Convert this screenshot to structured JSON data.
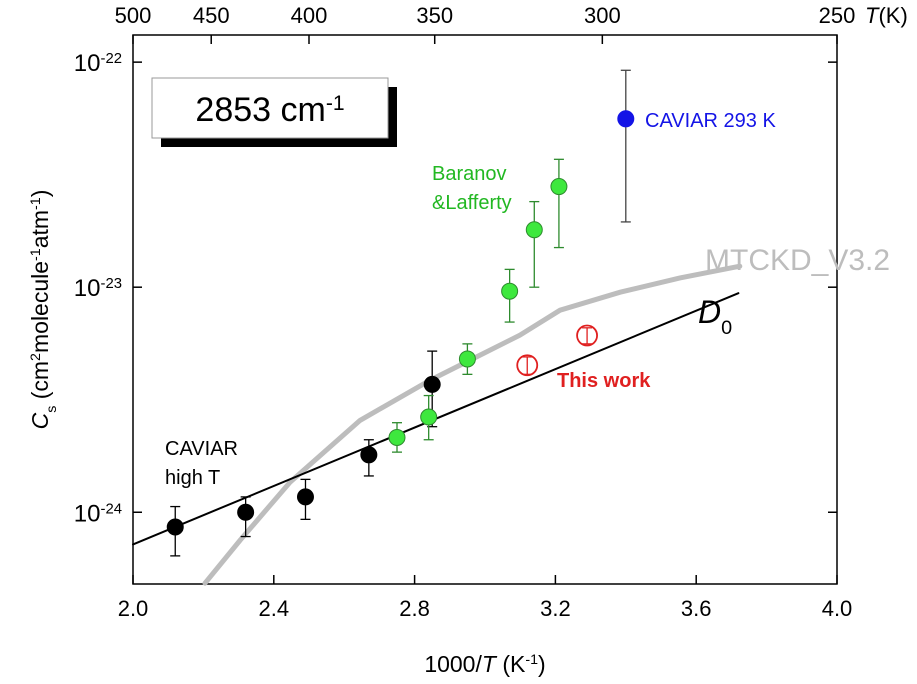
{
  "chart_data": {
    "type": "scatter",
    "box_label": [
      "2853 cm",
      "-1"
    ],
    "xlabel": [
      "1000/",
      "T",
      " (K",
      "-1",
      ")"
    ],
    "ylabel": [
      "C",
      "s",
      " (cm",
      "2",
      "molecule",
      "-1",
      "atm",
      "-1",
      ")"
    ],
    "top_label": [
      "T",
      "(K)"
    ],
    "xlim": [
      2.0,
      4.0
    ],
    "xticks": [
      {
        "value": 2.0,
        "label": "2.0"
      },
      2.4,
      2.8,
      3.2,
      3.6,
      {
        "value": 4.0,
        "label": "4.0"
      }
    ],
    "top_xticks": [
      500,
      450,
      400,
      350,
      300,
      250
    ],
    "ylim": [
      4.8e-25,
      1.32e-22
    ],
    "log_y": true,
    "yticks": [
      {
        "value": 1e-24,
        "label": [
          "10",
          "-24"
        ]
      },
      {
        "value": 1e-23,
        "label": [
          "10",
          "-23"
        ]
      },
      {
        "value": 1e-22,
        "label": [
          "10",
          "-22"
        ]
      }
    ],
    "series": [
      {
        "label": [
          "CAVIAR",
          "high T"
        ],
        "color": "#000000",
        "open": false,
        "x": [
          2.12,
          2.32,
          2.49,
          2.67,
          2.85
        ],
        "values": [
          8.6e-25,
          1e-24,
          1.17e-24,
          1.8e-24,
          3.7e-24
        ],
        "yerr_low": [
          6.4e-25,
          7.8e-25,
          9.3e-25,
          1.45e-24,
          2.4e-24
        ],
        "yerr_high": [
          1.06e-24,
          1.17e-24,
          1.4e-24,
          2.1e-24,
          5.2e-24
        ]
      },
      {
        "label": [
          "Baranov",
          "&Lafferty"
        ],
        "color": "#22b822",
        "open": false,
        "x": [
          2.75,
          2.84,
          2.95,
          3.07,
          3.14,
          3.21
        ],
        "values": [
          2.15e-24,
          2.65e-24,
          4.8e-24,
          9.6e-24,
          1.8e-23,
          2.8e-23
        ],
        "yerr_low": [
          1.85e-24,
          2.1e-24,
          4.1e-24,
          7e-24,
          1e-23,
          1.5e-23
        ],
        "yerr_high": [
          2.5e-24,
          3.3e-24,
          5.6e-24,
          1.2e-23,
          2.4e-23,
          3.7e-23
        ]
      },
      {
        "label": [
          "CAVIAR 293 K"
        ],
        "color": "#1414e6",
        "open": false,
        "x": [
          3.4
        ],
        "values": [
          5.6e-23
        ],
        "yerr_low": [
          1.95e-23
        ],
        "yerr_high": [
          9.2e-23
        ]
      },
      {
        "label": [
          "This work"
        ],
        "color": "#e02020",
        "open": true,
        "x": [
          3.12,
          3.29
        ],
        "values": [
          4.5e-24,
          6.1e-24
        ],
        "yerr_low": [
          4.1e-24,
          5.6e-24
        ],
        "yerr_high": [
          4.9e-24,
          6.6e-24
        ]
      }
    ],
    "curves": [
      {
        "label": [
          "MTCKD_V3.2"
        ],
        "color": "#bdbdbd",
        "x": [
          2.2045,
          2.304,
          2.446,
          2.645,
          2.844,
          2.986,
          3.099,
          3.213,
          3.384,
          3.554,
          3.724
        ],
        "values": [
          4.84e-25,
          7.5e-25,
          1.36e-24,
          2.56e-24,
          3.86e-24,
          4.99e-24,
          6.12e-24,
          7.9e-24,
          9.5e-24,
          1.1e-23,
          1.24e-23
        ]
      },
      {
        "label": [
          "D",
          "0"
        ],
        "color": "#000000",
        "x": [
          2.0,
          3.72
        ],
        "values": [
          7.2e-25,
          9.4e-24
        ]
      }
    ]
  }
}
